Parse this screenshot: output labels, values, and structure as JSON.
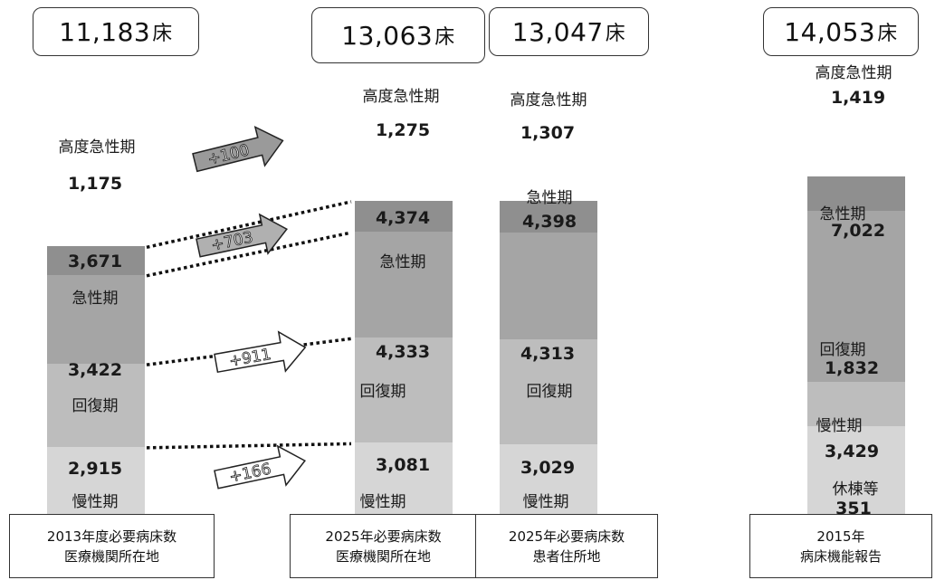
{
  "chart_data": {
    "type": "bar",
    "stacked": true,
    "unit": "床",
    "bars": [
      {
        "id": "2013",
        "caption": [
          "2013年度必要病床数",
          "医療機関所在地"
        ],
        "total": "11,183",
        "segments": [
          {
            "category": "高度急性期",
            "value": 1175,
            "value_label": "1,175"
          },
          {
            "category": "急性期",
            "value": 3671,
            "value_label": "3,671"
          },
          {
            "category": "回復期",
            "value": 3422,
            "value_label": "3,422"
          },
          {
            "category": "慢性期",
            "value": 2915,
            "value_label": "2,915"
          }
        ]
      },
      {
        "id": "2025-facility",
        "caption": [
          "2025年必要病床数",
          "医療機関所在地"
        ],
        "total": "13,063",
        "segments": [
          {
            "category": "高度急性期",
            "value": 1275,
            "value_label": "1,275"
          },
          {
            "category": "急性期",
            "value": 4374,
            "value_label": "4,374"
          },
          {
            "category": "回復期",
            "value": 4333,
            "value_label": "4,333"
          },
          {
            "category": "慢性期",
            "value": 3081,
            "value_label": "3,081"
          }
        ]
      },
      {
        "id": "2025-patient",
        "caption": [
          "2025年必要病床数",
          "患者住所地"
        ],
        "total": "13,047",
        "segments": [
          {
            "category": "高度急性期",
            "value": 1307,
            "value_label": "1,307"
          },
          {
            "category": "急性期",
            "value": 4398,
            "value_label": "4,398"
          },
          {
            "category": "回復期",
            "value": 4313,
            "value_label": "4,313"
          },
          {
            "category": "慢性期",
            "value": 3029,
            "value_label": "3,029"
          }
        ]
      },
      {
        "id": "2015",
        "caption": [
          "2015年",
          "病床機能報告"
        ],
        "total": "14,053",
        "segments": [
          {
            "category": "高度急性期",
            "value": 1419,
            "value_label": "1,419"
          },
          {
            "category": "急性期",
            "value": 7022,
            "value_label": "7,022"
          },
          {
            "category": "回復期",
            "value": 1832,
            "value_label": "1,832"
          },
          {
            "category": "慢性期",
            "value": 3429,
            "value_label": "3,429"
          },
          {
            "category": "休棟等",
            "value": 351,
            "value_label": "351"
          }
        ]
      }
    ],
    "differences": [
      "+100",
      "+703",
      "+911",
      "+166"
    ],
    "colors": {
      "高度急性期": "#8f8f8f",
      "急性期": "#a5a5a5",
      "回復期": "#bdbdbd",
      "慢性期": "#d6d6d6",
      "休棟等": "#d6d6d6"
    }
  }
}
